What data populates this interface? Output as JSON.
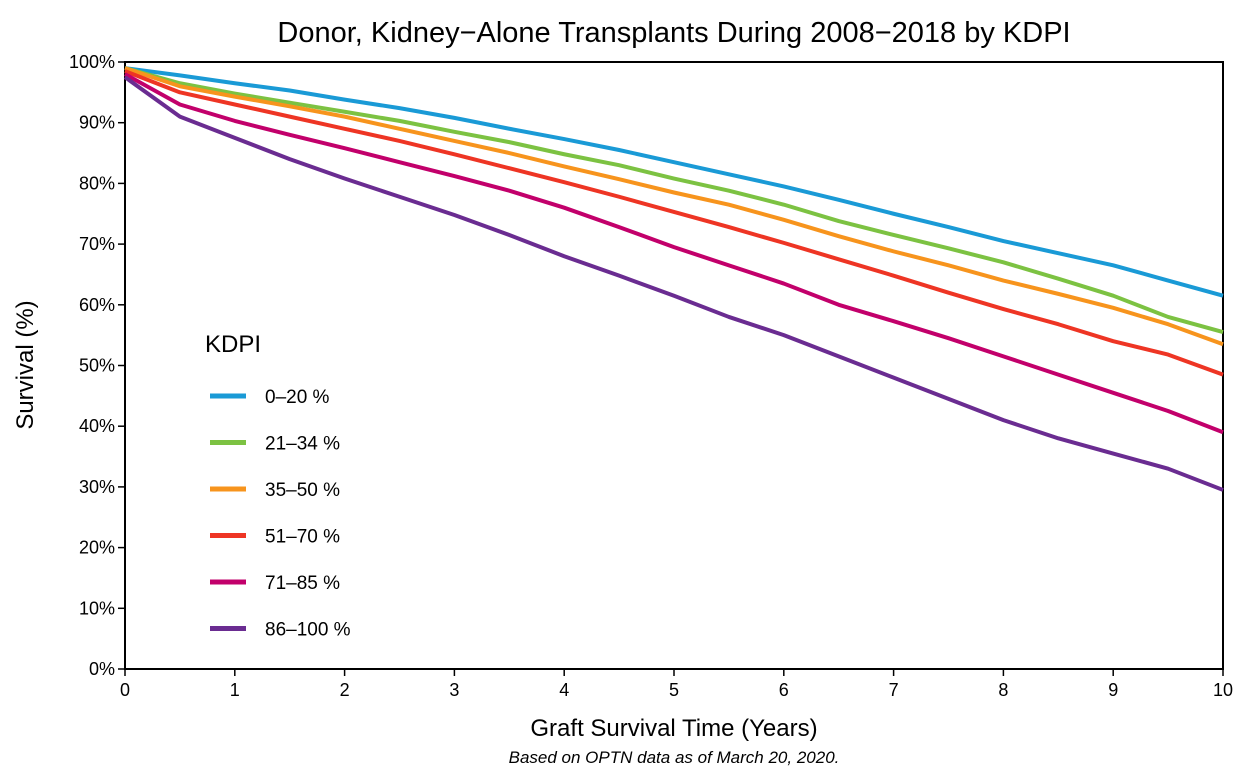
{
  "chart_data": {
    "type": "line",
    "title": "Donor, Kidney−Alone Transplants During 2008−2018 by KDPI",
    "x_label": "Graft Survival Time (Years)",
    "y_label": "Survival (%)",
    "footnote": "Based on OPTN data as of March 20, 2020.",
    "legend_title": "KDPI",
    "legend_position": "left",
    "x": [
      0,
      0.5,
      1,
      1.5,
      2,
      2.5,
      3,
      3.5,
      4,
      4.5,
      5,
      5.5,
      6,
      6.5,
      7,
      7.5,
      8,
      8.5,
      9,
      9.5,
      10
    ],
    "xlim": [
      0,
      10
    ],
    "xticks": [
      0,
      1,
      2,
      3,
      4,
      5,
      6,
      7,
      8,
      9,
      10
    ],
    "ylim": [
      0,
      100
    ],
    "yticks": [
      {
        "value": 0,
        "label": "0%"
      },
      {
        "value": 10,
        "label": "10%"
      },
      {
        "value": 20,
        "label": "20%"
      },
      {
        "value": 30,
        "label": "30%"
      },
      {
        "value": 40,
        "label": "40%"
      },
      {
        "value": 50,
        "label": "50%"
      },
      {
        "value": 60,
        "label": "60%"
      },
      {
        "value": 70,
        "label": "70%"
      },
      {
        "value": 80,
        "label": "80%"
      },
      {
        "value": 90,
        "label": "90%"
      },
      {
        "value": 100,
        "label": "100%"
      }
    ],
    "series": [
      {
        "name": "0–20 %",
        "color": "#1a9ad6",
        "values": [
          99,
          97.8,
          96.5,
          95.3,
          93.8,
          92.4,
          90.8,
          89,
          87.3,
          85.5,
          83.5,
          81.5,
          79.5,
          77.3,
          75,
          72.8,
          70.5,
          68.5,
          66.5,
          64,
          61.5
        ]
      },
      {
        "name": "21–34 %",
        "color": "#7cc242",
        "values": [
          99,
          96.5,
          94.8,
          93.3,
          91.8,
          90.3,
          88.5,
          86.8,
          84.8,
          83,
          80.8,
          78.8,
          76.5,
          73.8,
          71.5,
          69.3,
          67,
          64.3,
          61.5,
          58,
          55.5
        ]
      },
      {
        "name": "35–50 %",
        "color": "#f7941d",
        "values": [
          99,
          96,
          94.3,
          92.7,
          91,
          89,
          87,
          85,
          82.8,
          80.7,
          78.5,
          76.5,
          74,
          71.3,
          68.8,
          66.5,
          64,
          61.8,
          59.5,
          56.8,
          53.5
        ]
      },
      {
        "name": "51–70 %",
        "color": "#ee3524",
        "values": [
          98.5,
          95,
          93,
          91,
          89,
          87,
          84.8,
          82.5,
          80.2,
          77.8,
          75.3,
          72.8,
          70.2,
          67.5,
          64.8,
          62,
          59.3,
          56.8,
          54,
          51.8,
          48.5
        ]
      },
      {
        "name": "71–85 %",
        "color": "#c2006b",
        "values": [
          98,
          93,
          90.3,
          88,
          85.8,
          83.5,
          81.2,
          78.8,
          76,
          72.8,
          69.5,
          66.5,
          63.5,
          60,
          57.3,
          54.5,
          51.5,
          48.5,
          45.5,
          42.5,
          39
        ]
      },
      {
        "name": "86–100 %",
        "color": "#6a2c91",
        "values": [
          97.5,
          91,
          87.5,
          84,
          80.8,
          77.8,
          74.8,
          71.5,
          68,
          64.8,
          61.5,
          58,
          55,
          51.5,
          48,
          44.5,
          41,
          38,
          35.5,
          33,
          29.5
        ]
      }
    ]
  }
}
